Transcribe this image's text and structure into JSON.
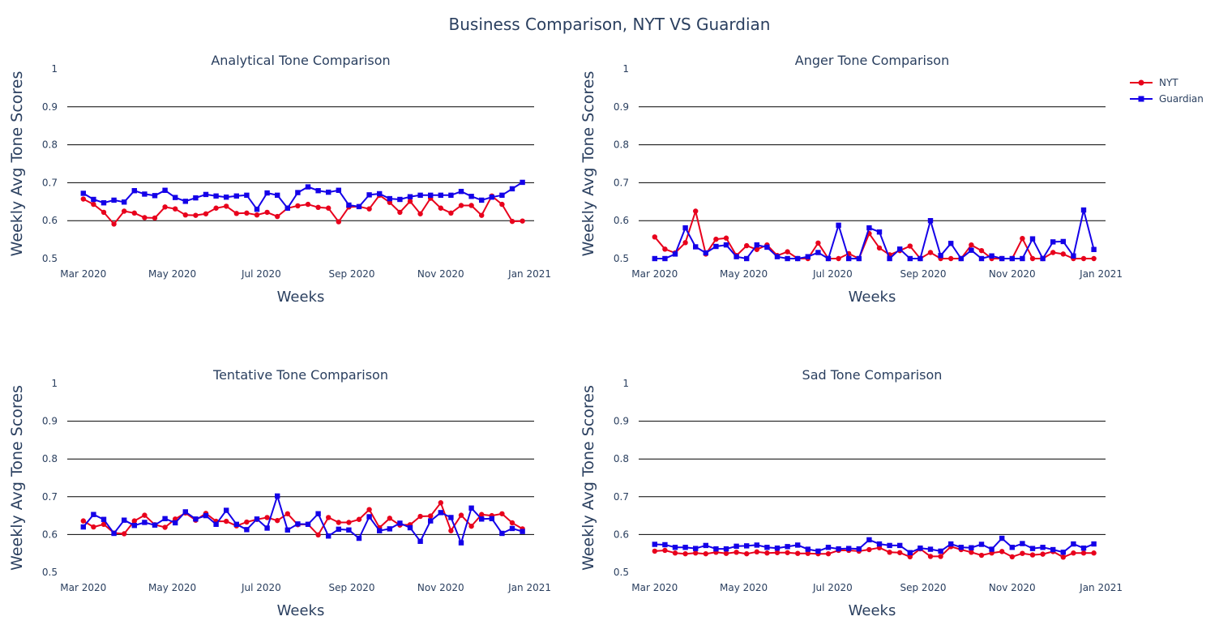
{
  "figure": {
    "title": "Business Comparison, NYT VS Guardian"
  },
  "legend": [
    {
      "name": "NYT",
      "color": "#e8001c",
      "marker": "circle"
    },
    {
      "name": "Guardian",
      "color": "#1400e8",
      "marker": "square"
    }
  ],
  "x_ticks": [
    "Mar 2020",
    "May 2020",
    "Jul 2020",
    "Sep 2020",
    "Nov 2020",
    "Jan 2021"
  ],
  "x_tick_dates": [
    "2020-03-01",
    "2020-05-01",
    "2020-07-01",
    "2020-09-01",
    "2020-11-01",
    "2021-01-01"
  ],
  "chart_data": [
    {
      "type": "line",
      "title": "Analytical Tone Comparison",
      "xlabel": "Weeks",
      "ylabel": "Weekly Avg Tone Scores",
      "ylim": [
        0.5,
        1
      ],
      "yticks": [
        "0.5",
        "0.6",
        "0.7",
        "0.8",
        "0.9",
        "1"
      ],
      "grid": "horizontal",
      "x": [
        "2020-03-01",
        "2020-03-08",
        "2020-03-15",
        "2020-03-22",
        "2020-03-29",
        "2020-04-05",
        "2020-04-12",
        "2020-04-19",
        "2020-04-26",
        "2020-05-03",
        "2020-05-10",
        "2020-05-17",
        "2020-05-24",
        "2020-05-31",
        "2020-06-07",
        "2020-06-14",
        "2020-06-21",
        "2020-06-28",
        "2020-07-05",
        "2020-07-12",
        "2020-07-19",
        "2020-07-26",
        "2020-08-02",
        "2020-08-09",
        "2020-08-16",
        "2020-08-23",
        "2020-08-30",
        "2020-09-06",
        "2020-09-13",
        "2020-09-20",
        "2020-09-27",
        "2020-10-04",
        "2020-10-11",
        "2020-10-18",
        "2020-10-25",
        "2020-11-01",
        "2020-11-08",
        "2020-11-15",
        "2020-11-22",
        "2020-11-29",
        "2020-12-06",
        "2020-12-13",
        "2020-12-20",
        "2020-12-27"
      ],
      "series": [
        {
          "name": "NYT",
          "values": [
            0.657,
            0.643,
            0.622,
            0.591,
            0.625,
            0.62,
            0.608,
            0.607,
            0.636,
            0.631,
            0.615,
            0.614,
            0.618,
            0.633,
            0.638,
            0.619,
            0.62,
            0.615,
            0.622,
            0.611,
            0.633,
            0.639,
            0.643,
            0.635,
            0.633,
            0.597,
            0.636,
            0.637,
            0.631,
            0.667,
            0.648,
            0.622,
            0.651,
            0.618,
            0.659,
            0.633,
            0.62,
            0.64,
            0.64,
            0.614,
            0.665,
            0.643,
            0.598,
            0.599
          ]
        },
        {
          "name": "Guardian",
          "values": [
            0.672,
            0.656,
            0.647,
            0.654,
            0.649,
            0.679,
            0.67,
            0.666,
            0.68,
            0.661,
            0.651,
            0.66,
            0.669,
            0.665,
            0.662,
            0.665,
            0.667,
            0.63,
            0.673,
            0.667,
            0.633,
            0.674,
            0.689,
            0.679,
            0.675,
            0.68,
            0.641,
            0.637,
            0.668,
            0.671,
            0.658,
            0.656,
            0.663,
            0.667,
            0.667,
            0.667,
            0.667,
            0.677,
            0.664,
            0.654,
            0.662,
            0.667,
            0.684,
            0.701
          ]
        }
      ]
    },
    {
      "type": "line",
      "title": "Anger Tone Comparison",
      "xlabel": "Weeks",
      "ylabel": "Weekly Avg Tone Scores",
      "ylim": [
        0.5,
        1
      ],
      "yticks": [
        "0.5",
        "0.6",
        "0.7",
        "0.8",
        "0.9",
        "1"
      ],
      "grid": "horizontal",
      "x": [
        "2020-03-01",
        "2020-03-08",
        "2020-03-15",
        "2020-03-22",
        "2020-03-29",
        "2020-04-05",
        "2020-04-12",
        "2020-04-19",
        "2020-04-26",
        "2020-05-03",
        "2020-05-10",
        "2020-05-17",
        "2020-05-24",
        "2020-05-31",
        "2020-06-07",
        "2020-06-14",
        "2020-06-21",
        "2020-06-28",
        "2020-07-05",
        "2020-07-12",
        "2020-07-19",
        "2020-07-26",
        "2020-08-02",
        "2020-08-09",
        "2020-08-16",
        "2020-08-23",
        "2020-08-30",
        "2020-09-06",
        "2020-09-13",
        "2020-09-20",
        "2020-09-27",
        "2020-10-04",
        "2020-10-11",
        "2020-10-18",
        "2020-10-25",
        "2020-11-01",
        "2020-11-08",
        "2020-11-15",
        "2020-11-22",
        "2020-11-29",
        "2020-12-06",
        "2020-12-13",
        "2020-12-20",
        "2020-12-27"
      ],
      "series": [
        {
          "name": "NYT",
          "values": [
            0.557,
            0.525,
            0.515,
            0.542,
            0.625,
            0.512,
            0.551,
            0.554,
            0.508,
            0.534,
            0.524,
            0.536,
            0.508,
            0.518,
            0.5,
            0.5,
            0.541,
            0.5,
            0.5,
            0.513,
            0.5,
            0.566,
            0.528,
            0.51,
            0.521,
            0.533,
            0.5,
            0.516,
            0.5,
            0.5,
            0.5,
            0.536,
            0.521,
            0.5,
            0.5,
            0.5,
            0.553,
            0.5,
            0.5,
            0.516,
            0.512,
            0.5,
            0.5,
            0.5
          ]
        },
        {
          "name": "Guardian",
          "values": [
            0.5,
            0.5,
            0.512,
            0.581,
            0.531,
            0.515,
            0.532,
            0.536,
            0.505,
            0.5,
            0.536,
            0.53,
            0.505,
            0.5,
            0.5,
            0.505,
            0.516,
            0.5,
            0.588,
            0.5,
            0.5,
            0.581,
            0.57,
            0.5,
            0.525,
            0.5,
            0.5,
            0.6,
            0.508,
            0.54,
            0.5,
            0.522,
            0.5,
            0.507,
            0.5,
            0.5,
            0.5,
            0.552,
            0.5,
            0.544,
            0.545,
            0.507,
            0.628,
            0.524
          ]
        }
      ]
    },
    {
      "type": "line",
      "title": "Tentative Tone Comparison",
      "xlabel": "Weeks",
      "ylabel": "Weekly Avg Tone Scores",
      "ylim": [
        0.5,
        1
      ],
      "yticks": [
        "0.5",
        "0.6",
        "0.7",
        "0.8",
        "0.9",
        "1"
      ],
      "grid": "horizontal",
      "x": [
        "2020-03-01",
        "2020-03-08",
        "2020-03-15",
        "2020-03-22",
        "2020-03-29",
        "2020-04-05",
        "2020-04-12",
        "2020-04-19",
        "2020-04-26",
        "2020-05-03",
        "2020-05-10",
        "2020-05-17",
        "2020-05-24",
        "2020-05-31",
        "2020-06-07",
        "2020-06-14",
        "2020-06-21",
        "2020-06-28",
        "2020-07-05",
        "2020-07-12",
        "2020-07-19",
        "2020-07-26",
        "2020-08-02",
        "2020-08-09",
        "2020-08-16",
        "2020-08-23",
        "2020-08-30",
        "2020-09-06",
        "2020-09-13",
        "2020-09-20",
        "2020-09-27",
        "2020-10-04",
        "2020-10-11",
        "2020-10-18",
        "2020-10-25",
        "2020-11-01",
        "2020-11-08",
        "2020-11-15",
        "2020-11-22",
        "2020-11-29",
        "2020-12-06",
        "2020-12-13",
        "2020-12-20",
        "2020-12-27"
      ],
      "series": [
        {
          "name": "NYT",
          "values": [
            0.636,
            0.62,
            0.627,
            0.604,
            0.602,
            0.636,
            0.651,
            0.626,
            0.619,
            0.641,
            0.657,
            0.638,
            0.656,
            0.635,
            0.635,
            0.623,
            0.633,
            0.64,
            0.645,
            0.637,
            0.655,
            0.626,
            0.627,
            0.599,
            0.645,
            0.632,
            0.632,
            0.64,
            0.666,
            0.618,
            0.643,
            0.625,
            0.626,
            0.648,
            0.649,
            0.684,
            0.61,
            0.651,
            0.622,
            0.653,
            0.65,
            0.655,
            0.631,
            0.615
          ]
        },
        {
          "name": "Guardian",
          "values": [
            0.62,
            0.653,
            0.64,
            0.603,
            0.638,
            0.624,
            0.632,
            0.625,
            0.642,
            0.631,
            0.66,
            0.641,
            0.65,
            0.627,
            0.664,
            0.627,
            0.613,
            0.641,
            0.617,
            0.702,
            0.612,
            0.628,
            0.627,
            0.655,
            0.596,
            0.614,
            0.612,
            0.59,
            0.647,
            0.61,
            0.615,
            0.63,
            0.618,
            0.582,
            0.636,
            0.658,
            0.645,
            0.578,
            0.67,
            0.641,
            0.642,
            0.603,
            0.616,
            0.608
          ]
        }
      ]
    },
    {
      "type": "line",
      "title": "Sad Tone Comparison",
      "xlabel": "Weeks",
      "ylabel": "Weekly Avg Tone Scores",
      "ylim": [
        0.5,
        1
      ],
      "yticks": [
        "0.5",
        "0.6",
        "0.7",
        "0.8",
        "0.9",
        "1"
      ],
      "grid": "horizontal",
      "x": [
        "2020-03-01",
        "2020-03-08",
        "2020-03-15",
        "2020-03-22",
        "2020-03-29",
        "2020-04-05",
        "2020-04-12",
        "2020-04-19",
        "2020-04-26",
        "2020-05-03",
        "2020-05-10",
        "2020-05-17",
        "2020-05-24",
        "2020-05-31",
        "2020-06-07",
        "2020-06-14",
        "2020-06-21",
        "2020-06-28",
        "2020-07-05",
        "2020-07-12",
        "2020-07-19",
        "2020-07-26",
        "2020-08-02",
        "2020-08-09",
        "2020-08-16",
        "2020-08-23",
        "2020-08-30",
        "2020-09-06",
        "2020-09-13",
        "2020-09-20",
        "2020-09-27",
        "2020-10-04",
        "2020-10-11",
        "2020-10-18",
        "2020-10-25",
        "2020-11-01",
        "2020-11-08",
        "2020-11-15",
        "2020-11-22",
        "2020-11-29",
        "2020-12-06",
        "2020-12-13",
        "2020-12-20",
        "2020-12-27"
      ],
      "series": [
        {
          "name": "NYT",
          "values": [
            0.556,
            0.558,
            0.551,
            0.549,
            0.551,
            0.549,
            0.553,
            0.55,
            0.553,
            0.549,
            0.554,
            0.551,
            0.552,
            0.552,
            0.55,
            0.55,
            0.549,
            0.549,
            0.558,
            0.558,
            0.556,
            0.56,
            0.565,
            0.553,
            0.552,
            0.541,
            0.562,
            0.542,
            0.542,
            0.568,
            0.56,
            0.553,
            0.545,
            0.551,
            0.555,
            0.541,
            0.55,
            0.546,
            0.548,
            0.555,
            0.54,
            0.551,
            0.551,
            0.551
          ]
        },
        {
          "name": "Guardian",
          "values": [
            0.574,
            0.573,
            0.566,
            0.566,
            0.563,
            0.571,
            0.562,
            0.562,
            0.569,
            0.57,
            0.572,
            0.566,
            0.564,
            0.568,
            0.572,
            0.561,
            0.556,
            0.566,
            0.562,
            0.563,
            0.562,
            0.586,
            0.575,
            0.571,
            0.571,
            0.552,
            0.564,
            0.561,
            0.556,
            0.575,
            0.566,
            0.565,
            0.574,
            0.561,
            0.59,
            0.566,
            0.576,
            0.563,
            0.566,
            0.56,
            0.553,
            0.575,
            0.564,
            0.575
          ]
        }
      ]
    }
  ]
}
